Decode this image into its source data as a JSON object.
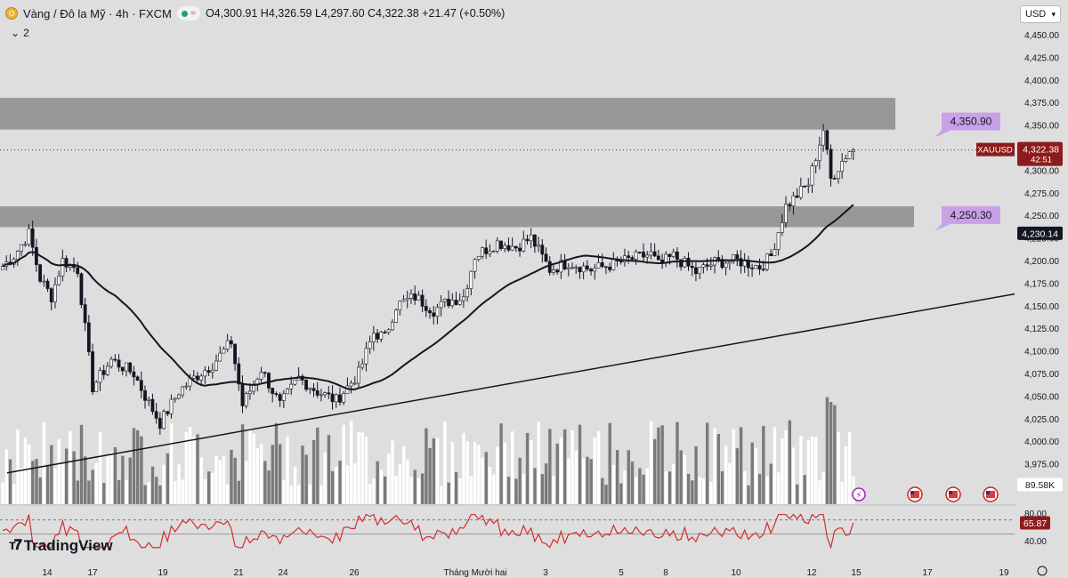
{
  "header": {
    "symbol": "Vàng / Đô la Mỹ · 4h · FXCM",
    "ohlc": "O4,300.91  H4,326.59  L4,297.60  C4,322.38  +21.47 (+0.50%)",
    "indicator_count": "2"
  },
  "currency": "USD",
  "branding": "TradingView",
  "colors": {
    "background": "#dedede",
    "bull": "#ffffff",
    "bear": "#131722",
    "zone": "#8c8c8c",
    "label": "#c9a1e6",
    "rsi": "#d32f2f",
    "price_tag": "#8e1b1b",
    "volume_bull": "#ffffff",
    "volume_bear": "#7a7a7a"
  },
  "chart_data": {
    "type": "candlestick",
    "price_axis": {
      "ticks": [
        "4,450.00",
        "4,425.00",
        "4,400.00",
        "4,375.00",
        "4,350.00",
        "4,325.00",
        "4,300.00",
        "4,275.00",
        "4,250.00",
        "4,225.00",
        "4,200.00",
        "4,175.00",
        "4,150.00",
        "4,125.00",
        "4,100.00",
        "4,075.00",
        "4,050.00",
        "4,025.00",
        "4,000.00",
        "3,975.00",
        "3,950.00"
      ],
      "range": [
        3947,
        4456
      ]
    },
    "time_axis": [
      "14",
      "17",
      "19",
      "21",
      "24",
      "26",
      "Tháng Mười hai",
      "3",
      "5",
      "8",
      "10",
      "12",
      "15",
      "17",
      "19"
    ],
    "zones": [
      {
        "low": 4345,
        "high": 4380
      },
      {
        "low": 4237,
        "high": 4260
      }
    ],
    "annotations": [
      {
        "text": "4,350.90",
        "price": 4350.9
      },
      {
        "text": "4,250.30",
        "price": 4250.3
      }
    ],
    "last_price": {
      "symbol": "XAUUSD",
      "price_text": "4,322.38",
      "countdown": "42:51",
      "price": 4322.38
    },
    "ma_label": {
      "text": "4,230.14",
      "price": 4230.14
    },
    "volume_label": "89.58K",
    "trendline": {
      "from_price": 3965,
      "to_price": 4163
    },
    "rsi": {
      "level_text_high": "80.00",
      "level_text_low": "40.00",
      "value_text": "65.87",
      "value": 65.87,
      "levels": [
        70,
        30
      ]
    }
  }
}
